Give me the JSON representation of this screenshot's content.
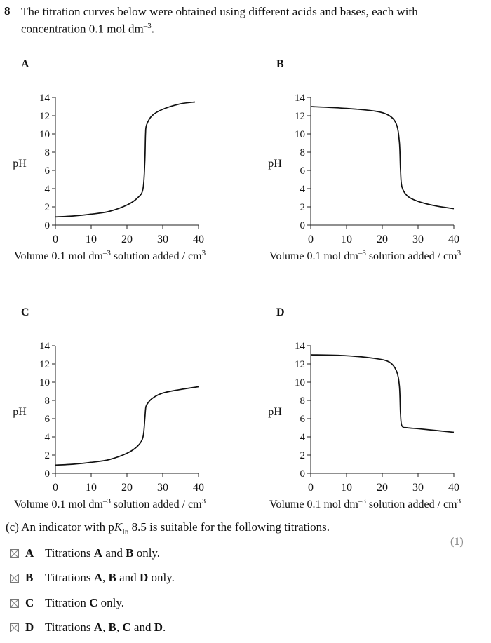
{
  "question": {
    "number": "8",
    "stem_line1": "The titration curves below were obtained using different acids and bases, each with",
    "stem_line2_pre": "concentration 0.1 mol dm",
    "stem_line2_sup": "–3",
    "stem_line2_post": "."
  },
  "chart_data": [
    {
      "type": "line",
      "panel_label": "A",
      "ylabel": "pH",
      "xlabel_pre": "Volume 0.1 mol dm",
      "xlabel_sup1": "–3",
      "xlabel_mid": " solution added / cm",
      "xlabel_sup2": "3",
      "xlim": [
        0,
        40
      ],
      "ylim": [
        0,
        14
      ],
      "xticks": [
        0,
        10,
        20,
        30,
        40
      ],
      "yticks": [
        0,
        2,
        4,
        6,
        8,
        10,
        12,
        14
      ],
      "series": [
        {
          "x": [
            0,
            5,
            10,
            15,
            20,
            23,
            24.5,
            25,
            25.2,
            25.5,
            27,
            30,
            35,
            39
          ],
          "y": [
            0.9,
            1.0,
            1.2,
            1.5,
            2.2,
            3.0,
            4.0,
            7.0,
            10.0,
            11.0,
            12.0,
            12.7,
            13.3,
            13.5
          ]
        }
      ]
    },
    {
      "type": "line",
      "panel_label": "B",
      "ylabel": "pH",
      "xlabel_pre": "Volume 0.1 mol dm",
      "xlabel_sup1": "–3",
      "xlabel_mid": " solution added / cm",
      "xlabel_sup2": "3",
      "xlim": [
        0,
        40
      ],
      "ylim": [
        0,
        14
      ],
      "xticks": [
        0,
        10,
        20,
        30,
        40
      ],
      "yticks": [
        0,
        2,
        4,
        6,
        8,
        10,
        12,
        14
      ],
      "series": [
        {
          "x": [
            0,
            10,
            18,
            22,
            24,
            24.8,
            25.1,
            25.5,
            27,
            30,
            35,
            40
          ],
          "y": [
            13.0,
            12.8,
            12.5,
            12.0,
            11.0,
            9.0,
            6.0,
            4.2,
            3.2,
            2.6,
            2.1,
            1.8
          ]
        }
      ]
    },
    {
      "type": "line",
      "panel_label": "C",
      "ylabel": "pH",
      "xlabel_pre": "Volume 0.1 mol dm",
      "xlabel_sup1": "–3",
      "xlabel_mid": " solution added / cm",
      "xlabel_sup2": "3",
      "xlim": [
        0,
        40
      ],
      "ylim": [
        0,
        14
      ],
      "xticks": [
        0,
        10,
        20,
        30,
        40
      ],
      "yticks": [
        0,
        2,
        4,
        6,
        8,
        10,
        12,
        14
      ],
      "series": [
        {
          "x": [
            0,
            5,
            10,
            15,
            20,
            23,
            24.5,
            25,
            25.2,
            25.5,
            27,
            30,
            35,
            40
          ],
          "y": [
            0.9,
            1.0,
            1.2,
            1.5,
            2.2,
            3.0,
            4.0,
            6.0,
            7.0,
            7.5,
            8.2,
            8.8,
            9.2,
            9.5
          ]
        }
      ]
    },
    {
      "type": "line",
      "panel_label": "D",
      "ylabel": "pH",
      "xlabel_pre": "Volume 0.1 mol dm",
      "xlabel_sup1": "–3",
      "xlabel_mid": " solution added / cm",
      "xlabel_sup2": "3",
      "xlim": [
        0,
        40
      ],
      "ylim": [
        0,
        14
      ],
      "xticks": [
        0,
        10,
        20,
        30,
        40
      ],
      "yticks": [
        0,
        2,
        4,
        6,
        8,
        10,
        12,
        14
      ],
      "series": [
        {
          "x": [
            0,
            10,
            18,
            22,
            24,
            24.8,
            25.1,
            25.5,
            27,
            30,
            35,
            40
          ],
          "y": [
            13.0,
            12.9,
            12.6,
            12.2,
            11.2,
            9.5,
            6.5,
            5.2,
            5.0,
            4.9,
            4.7,
            4.5
          ]
        }
      ]
    }
  ],
  "part": {
    "pre": "(c) An indicator with p",
    "k": "K",
    "sub": "In",
    "post": " 8.5 is suitable for the following titrations.",
    "marks": "(1)"
  },
  "options": [
    {
      "letter": "A",
      "parts": [
        {
          "t": "Titrations ",
          "b": false
        },
        {
          "t": "A",
          "b": true
        },
        {
          "t": " and ",
          "b": false
        },
        {
          "t": "B",
          "b": true
        },
        {
          "t": " only.",
          "b": false
        }
      ]
    },
    {
      "letter": "B",
      "parts": [
        {
          "t": "Titrations ",
          "b": false
        },
        {
          "t": "A",
          "b": true
        },
        {
          "t": ", ",
          "b": false
        },
        {
          "t": "B",
          "b": true
        },
        {
          "t": " and ",
          "b": false
        },
        {
          "t": "D",
          "b": true
        },
        {
          "t": " only.",
          "b": false
        }
      ]
    },
    {
      "letter": "C",
      "parts": [
        {
          "t": "Titration ",
          "b": false
        },
        {
          "t": "C",
          "b": true
        },
        {
          "t": " only.",
          "b": false
        }
      ]
    },
    {
      "letter": "D",
      "parts": [
        {
          "t": "Titrations ",
          "b": false
        },
        {
          "t": "A",
          "b": true
        },
        {
          "t": ", ",
          "b": false
        },
        {
          "t": "B",
          "b": true
        },
        {
          "t": ", ",
          "b": false
        },
        {
          "t": "C",
          "b": true
        },
        {
          "t": " and ",
          "b": false
        },
        {
          "t": "D",
          "b": true
        },
        {
          "t": ".",
          "b": false
        }
      ]
    }
  ]
}
